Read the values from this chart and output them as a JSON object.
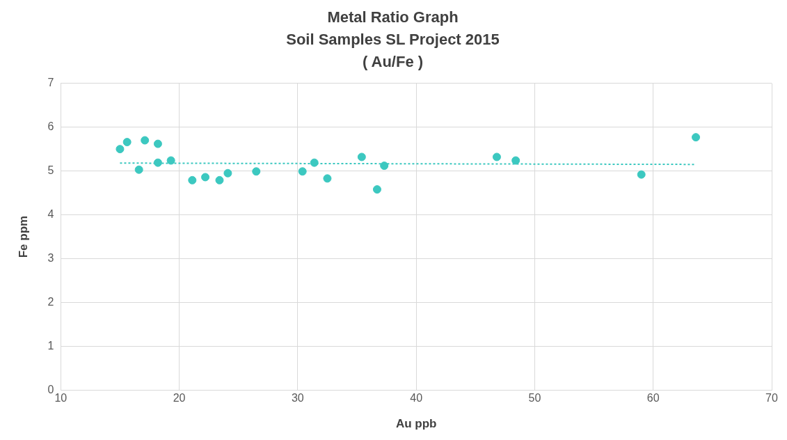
{
  "chart_data": {
    "type": "scatter",
    "title": "Metal Ratio Graph",
    "subtitle": "Soil Samples SL Project 2015\n( Au/Fe )",
    "xlabel": "Au ppb",
    "ylabel": "Fe ppm",
    "series": [
      {
        "color": "#3cc8c0",
        "x": [
          15.0,
          15.6,
          16.6,
          17.1,
          18.2,
          18.2,
          19.3,
          21.1,
          22.2,
          23.4,
          24.1,
          26.5,
          30.4,
          31.4,
          32.5,
          35.4,
          36.7,
          37.3,
          46.8,
          48.4,
          59.0,
          63.6
        ],
        "values": [
          5.5,
          5.66,
          5.03,
          5.7,
          5.62,
          5.19,
          5.24,
          4.79,
          4.86,
          4.79,
          4.95,
          4.99,
          4.99,
          5.19,
          4.83,
          5.32,
          4.58,
          5.12,
          5.32,
          5.24,
          4.92,
          5.77
        ]
      },
      {
        "type": "line",
        "color": "#3cc8c0",
        "line_style": "dotted",
        "marker": "none",
        "x": [
          15.0,
          63.6
        ],
        "values": [
          5.18,
          5.15
        ]
      }
    ],
    "xlim": [
      10,
      70
    ],
    "xticks": [
      10,
      20,
      30,
      40,
      50,
      60,
      70
    ],
    "ylim": [
      0,
      7
    ],
    "yticks": [
      0,
      1,
      2,
      3,
      4,
      5,
      6,
      7
    ],
    "grid": true,
    "legend": false,
    "marker": "circle"
  }
}
